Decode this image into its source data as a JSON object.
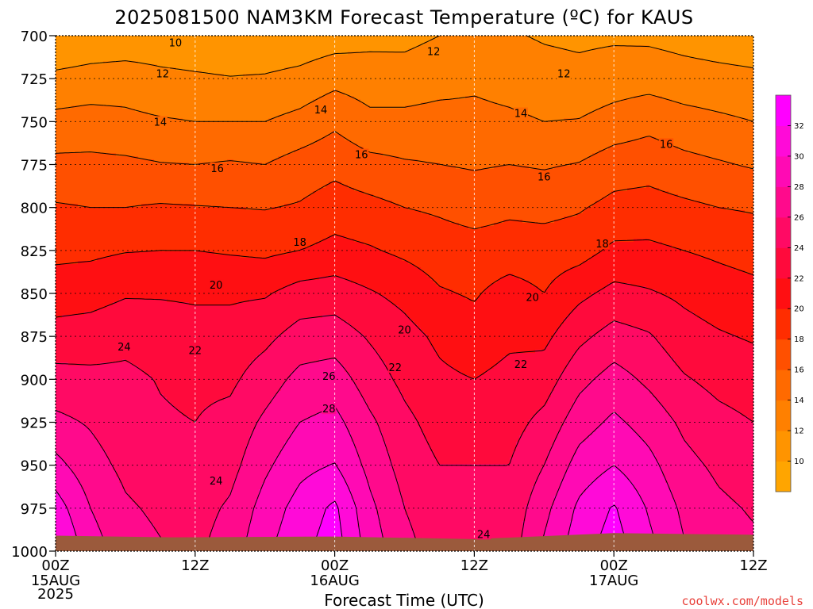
{
  "chart_data": {
    "type": "contour",
    "title": "2025081500 NAM3KM Forecast Temperature (ºC) for KAUS",
    "xlabel": "Forecast Time (UTC)",
    "ylabel": "",
    "x": [
      0,
      3,
      6,
      9,
      12,
      15,
      18,
      21,
      24,
      27,
      30,
      33,
      36,
      39,
      42,
      45,
      48,
      51,
      54,
      57,
      60
    ],
    "x_unit": "forecast hour",
    "xlim": [
      0,
      60
    ],
    "x_ticks": [
      {
        "hour": 0,
        "label": "00Z",
        "date": "15AUG",
        "year": "2025"
      },
      {
        "hour": 12,
        "label": "12Z",
        "date": "",
        "year": ""
      },
      {
        "hour": 24,
        "label": "00Z",
        "date": "16AUG",
        "year": ""
      },
      {
        "hour": 36,
        "label": "12Z",
        "date": "",
        "year": ""
      },
      {
        "hour": 48,
        "label": "00Z",
        "date": "17AUG",
        "year": ""
      },
      {
        "hour": 60,
        "label": "12Z",
        "date": "",
        "year": ""
      }
    ],
    "y_levels": [
      700,
      725,
      750,
      775,
      800,
      825,
      850,
      875,
      900,
      925,
      950,
      975,
      1000
    ],
    "y_unit": "hPa",
    "ylim": [
      1000,
      700
    ],
    "y_ticks": [
      "700",
      "725",
      "750",
      "775",
      "800",
      "825",
      "850",
      "875",
      "900",
      "925",
      "950",
      "975",
      "1000"
    ],
    "contour_interval": 2,
    "colorbar": {
      "levels": [
        8,
        10,
        12,
        14,
        16,
        18,
        20,
        22,
        24,
        26,
        28,
        30,
        32,
        34
      ],
      "labels": [
        "10",
        "12",
        "14",
        "16",
        "18",
        "20",
        "22",
        "24",
        "26",
        "28",
        "30",
        "32"
      ],
      "colors": [
        "#FFA500",
        "#FF9400",
        "#FF8000",
        "#FF6A00",
        "#FF5000",
        "#FF2D00",
        "#FF0F12",
        "#FF0A3C",
        "#FF0A64",
        "#FF0A8C",
        "#FF0AB4",
        "#FF0AD8",
        "#FF00FF"
      ]
    },
    "surface_color": "#9B5A3C",
    "grid": true,
    "temperature_profiles": [
      {
        "hour": 0,
        "values": {
          "700": 10,
          "725": 12.5,
          "750": 14.6,
          "775": 16.5,
          "800": 18.2,
          "825": 19.5,
          "850": 21.0,
          "875": 22.8,
          "900": 24.7,
          "925": 26.5,
          "950": 28.6,
          "975": 31.0,
          "1000": 32.5
        }
      },
      {
        "hour": 3,
        "values": {
          "700": 10.5,
          "725": 12.8,
          "750": 14.8,
          "775": 16.5,
          "800": 18.0,
          "825": 19.6,
          "850": 21.2,
          "875": 23.0,
          "900": 24.5,
          "925": 25.8,
          "950": 26.8,
          "975": 28.0,
          "1000": 29.0
        }
      },
      {
        "hour": 6,
        "values": {
          "700": 10.6,
          "725": 13.0,
          "750": 14.5,
          "775": 16.4,
          "800": 18.0,
          "825": 19.9,
          "850": 21.8,
          "875": 23.5,
          "900": 24.4,
          "925": 24.8,
          "950": 25.5,
          "975": 26.3,
          "1000": 27.0
        }
      },
      {
        "hour": 9,
        "values": {
          "700": 10.7,
          "725": 12.5,
          "750": 14.2,
          "775": 16.1,
          "800": 18.2,
          "825": 20.0,
          "850": 21.8,
          "875": 23.2,
          "900": 23.9,
          "925": 24.2,
          "950": 24.8,
          "975": 25.6,
          "1000": 26.2
        }
      },
      {
        "hour": 12,
        "values": {
          "700": 10.5,
          "725": 12.3,
          "750": 14.0,
          "775": 16.0,
          "800": 18.1,
          "825": 20.0,
          "850": 21.7,
          "875": 22.8,
          "900": 23.6,
          "925": 24.0,
          "950": 24.5,
          "975": 25.2,
          "1000": 25.6
        }
      },
      {
        "hour": 15,
        "values": {
          "700": 10.3,
          "725": 12.1,
          "750": 14.0,
          "775": 16.2,
          "800": 18.0,
          "825": 19.8,
          "850": 21.7,
          "875": 22.8,
          "900": 23.6,
          "925": 24.6,
          "950": 25.3,
          "975": 26.3,
          "1000": 27.0
        }
      },
      {
        "hour": 18,
        "values": {
          "700": 10.4,
          "725": 12.2,
          "750": 14.0,
          "775": 16.0,
          "800": 17.9,
          "825": 19.6,
          "850": 21.8,
          "875": 23.5,
          "900": 25.0,
          "925": 26.4,
          "950": 27.6,
          "975": 28.8,
          "1000": 29.6
        }
      },
      {
        "hour": 21,
        "values": {
          "700": 10.6,
          "725": 12.6,
          "750": 14.6,
          "775": 16.8,
          "800": 18.2,
          "825": 20.0,
          "850": 22.8,
          "875": 24.8,
          "900": 26.6,
          "925": 28.0,
          "950": 29.4,
          "975": 30.8,
          "1000": 31.5
        }
      },
      {
        "hour": 24,
        "values": {
          "700": 11.0,
          "725": 13.4,
          "750": 15.6,
          "775": 17.4,
          "800": 19.0,
          "825": 20.6,
          "850": 23.0,
          "875": 25.0,
          "900": 27.0,
          "925": 28.6,
          "950": 30.1,
          "975": 32.4,
          "1000": 33.0
        }
      },
      {
        "hour": 27,
        "values": {
          "700": 11.4,
          "725": 13.0,
          "750": 14.5,
          "775": 16.6,
          "800": 18.6,
          "825": 20.2,
          "850": 22.2,
          "875": 23.8,
          "900": 25.0,
          "925": 26.4,
          "950": 27.4,
          "975": 28.5,
          "1000": 29.2
        }
      },
      {
        "hour": 30,
        "values": {
          "700": 11.5,
          "725": 12.8,
          "750": 14.6,
          "775": 16.2,
          "800": 18.0,
          "825": 19.6,
          "850": 21.4,
          "875": 22.7,
          "900": 23.5,
          "925": 24.5,
          "950": 25.2,
          "975": 26.0,
          "1000": 26.6
        }
      },
      {
        "hour": 33,
        "values": {
          "700": 12.0,
          "725": 13.2,
          "750": 14.8,
          "775": 16.0,
          "800": 17.7,
          "825": 19.0,
          "850": 20.2,
          "875": 21.6,
          "900": 22.4,
          "925": 23.2,
          "950": 24.0,
          "975": 24.8,
          "1000": 25.2
        }
      },
      {
        "hour": 36,
        "values": {
          "700": 12.6,
          "725": 13.6,
          "750": 14.6,
          "775": 15.8,
          "800": 17.2,
          "825": 18.8,
          "850": 19.8,
          "875": 20.8,
          "900": 22.0,
          "925": 23.2,
          "950": 24.0,
          "975": 24.6,
          "1000": 25.0
        }
      },
      {
        "hour": 39,
        "values": {
          "700": 12.2,
          "725": 13.2,
          "750": 14.4,
          "775": 16.0,
          "800": 17.6,
          "825": 19.0,
          "850": 20.8,
          "875": 21.6,
          "900": 22.6,
          "925": 23.2,
          "950": 24.0,
          "975": 24.6,
          "1000": 25.0
        }
      },
      {
        "hour": 42,
        "values": {
          "700": 11.8,
          "725": 12.8,
          "750": 14.0,
          "775": 15.8,
          "800": 17.4,
          "825": 19.0,
          "850": 20.0,
          "875": 21.5,
          "900": 23.0,
          "925": 24.6,
          "950": 26.0,
          "975": 27.4,
          "1000": 28.4
        }
      },
      {
        "hour": 45,
        "values": {
          "700": 11.6,
          "725": 12.6,
          "750": 14.1,
          "775": 16.1,
          "800": 17.8,
          "825": 19.2,
          "850": 21.5,
          "875": 23.5,
          "900": 25.4,
          "925": 27.1,
          "950": 28.8,
          "975": 30.4,
          "1000": 31.2
        }
      },
      {
        "hour": 48,
        "values": {
          "700": 11.7,
          "725": 13.0,
          "750": 14.8,
          "775": 17.0,
          "800": 18.6,
          "825": 20.4,
          "850": 22.6,
          "875": 24.8,
          "900": 26.8,
          "925": 28.4,
          "950": 30.0,
          "975": 32.2,
          "1000": 33.0
        }
      },
      {
        "hour": 51,
        "values": {
          "700": 11.6,
          "725": 13.2,
          "750": 15.4,
          "775": 17.2,
          "800": 18.8,
          "825": 20.4,
          "850": 22.2,
          "875": 24.2,
          "900": 25.6,
          "925": 27.2,
          "950": 28.6,
          "975": 29.8,
          "1000": 30.6
        }
      },
      {
        "hour": 54,
        "values": {
          "700": 11.3,
          "725": 12.8,
          "750": 14.8,
          "775": 16.6,
          "800": 18.4,
          "825": 20.0,
          "850": 21.6,
          "875": 22.8,
          "900": 24.2,
          "925": 25.6,
          "950": 26.6,
          "975": 27.6,
          "1000": 28.2
        }
      },
      {
        "hour": 57,
        "values": {
          "700": 11.0,
          "725": 12.6,
          "750": 14.4,
          "775": 16.2,
          "800": 18.0,
          "825": 19.6,
          "850": 21.0,
          "875": 22.2,
          "900": 23.4,
          "925": 24.6,
          "950": 25.6,
          "975": 26.4,
          "1000": 27.0
        }
      },
      {
        "hour": 60,
        "values": {
          "700": 10.8,
          "725": 12.4,
          "750": 14.0,
          "775": 15.8,
          "800": 17.8,
          "825": 19.2,
          "850": 20.6,
          "875": 21.8,
          "900": 23.0,
          "925": 24.0,
          "950": 25.0,
          "975": 25.8,
          "1000": 26.4
        }
      }
    ],
    "contour_labels": [
      {
        "text": "10",
        "hour": 10.3,
        "p": 704
      },
      {
        "text": "12",
        "hour": 9.2,
        "p": 722
      },
      {
        "text": "14",
        "hour": 9.0,
        "p": 750
      },
      {
        "text": "16",
        "hour": 13.9,
        "p": 777
      },
      {
        "text": "18",
        "hour": 21.0,
        "p": 820
      },
      {
        "text": "20",
        "hour": 13.8,
        "p": 845
      },
      {
        "text": "22",
        "hour": 12.0,
        "p": 883
      },
      {
        "text": "24",
        "hour": 5.9,
        "p": 881
      },
      {
        "text": "24",
        "hour": 13.8,
        "p": 959
      },
      {
        "text": "26",
        "hour": 23.5,
        "p": 898
      },
      {
        "text": "28",
        "hour": 23.5,
        "p": 917
      },
      {
        "text": "12",
        "hour": 32.5,
        "p": 709
      },
      {
        "text": "14",
        "hour": 22.8,
        "p": 743
      },
      {
        "text": "16",
        "hour": 26.3,
        "p": 769
      },
      {
        "text": "20",
        "hour": 30.0,
        "p": 871
      },
      {
        "text": "22",
        "hour": 29.2,
        "p": 893
      },
      {
        "text": "24",
        "hour": 36.8,
        "p": 990
      },
      {
        "text": "12",
        "hour": 43.7,
        "p": 722
      },
      {
        "text": "14",
        "hour": 40.0,
        "p": 745
      },
      {
        "text": "16",
        "hour": 42.0,
        "p": 782
      },
      {
        "text": "18",
        "hour": 47.0,
        "p": 821
      },
      {
        "text": "20",
        "hour": 41.0,
        "p": 852
      },
      {
        "text": "22",
        "hour": 40.0,
        "p": 891
      },
      {
        "text": "16",
        "hour": 52.5,
        "p": 763
      }
    ]
  },
  "credit": "coolwx.com/models"
}
